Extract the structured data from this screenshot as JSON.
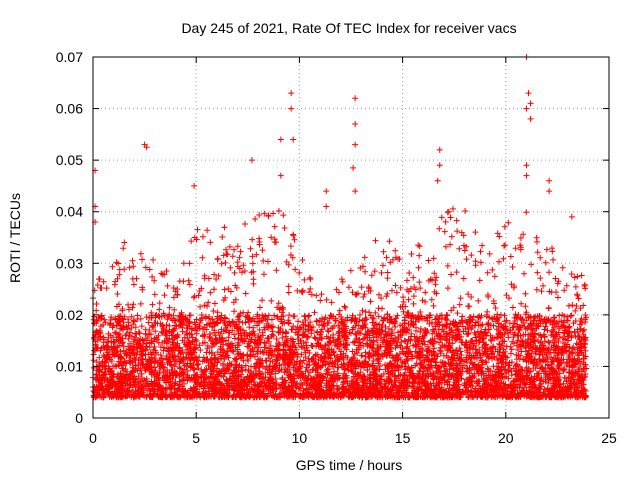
{
  "chart_data": {
    "type": "scatter",
    "title": "Day 245 of 2021, Rate Of TEC Index for receiver vacs",
    "xlabel": "GPS time / hours",
    "ylabel": "ROTI / TECUs",
    "xlim": [
      0,
      25
    ],
    "ylim": [
      0,
      0.07
    ],
    "x_ticks": [
      "0",
      "5",
      "10",
      "15",
      "20",
      "25"
    ],
    "y_ticks": [
      "0",
      "0.01",
      "0.02",
      "0.03",
      "0.04",
      "0.05",
      "0.06",
      "0.07"
    ],
    "grid": true,
    "marker": "plus",
    "color": "#ff0000",
    "series": [
      {
        "x_range": [
          0,
          23.9
        ],
        "notable_points": [
          {
            "x": 0.1,
            "y": 0.048
          },
          {
            "x": 0.1,
            "y": 0.041
          },
          {
            "x": 0.1,
            "y": 0.038
          },
          {
            "x": 2.5,
            "y": 0.053
          },
          {
            "x": 2.6,
            "y": 0.0525
          },
          {
            "x": 4.9,
            "y": 0.045
          },
          {
            "x": 7.7,
            "y": 0.05
          },
          {
            "x": 9.1,
            "y": 0.054
          },
          {
            "x": 9.1,
            "y": 0.047
          },
          {
            "x": 9.6,
            "y": 0.063
          },
          {
            "x": 9.6,
            "y": 0.06
          },
          {
            "x": 9.7,
            "y": 0.054
          },
          {
            "x": 11.3,
            "y": 0.044
          },
          {
            "x": 11.3,
            "y": 0.041
          },
          {
            "x": 12.7,
            "y": 0.062
          },
          {
            "x": 12.7,
            "y": 0.057
          },
          {
            "x": 12.7,
            "y": 0.053
          },
          {
            "x": 12.6,
            "y": 0.0485
          },
          {
            "x": 12.7,
            "y": 0.044
          },
          {
            "x": 16.8,
            "y": 0.052
          },
          {
            "x": 16.8,
            "y": 0.049
          },
          {
            "x": 16.7,
            "y": 0.046
          },
          {
            "x": 21.0,
            "y": 0.07
          },
          {
            "x": 21.1,
            "y": 0.063
          },
          {
            "x": 21.2,
            "y": 0.061
          },
          {
            "x": 21.0,
            "y": 0.06
          },
          {
            "x": 21.2,
            "y": 0.058
          },
          {
            "x": 21.0,
            "y": 0.049
          },
          {
            "x": 21.0,
            "y": 0.047
          },
          {
            "x": 22.1,
            "y": 0.046
          },
          {
            "x": 22.1,
            "y": 0.044
          },
          {
            "x": 23.2,
            "y": 0.039
          }
        ],
        "envelope_max": [
          {
            "x": 0,
            "y": 0.025
          },
          {
            "x": 1,
            "y": 0.033
          },
          {
            "x": 2,
            "y": 0.036
          },
          {
            "x": 3,
            "y": 0.031
          },
          {
            "x": 4,
            "y": 0.029
          },
          {
            "x": 5,
            "y": 0.04
          },
          {
            "x": 6,
            "y": 0.038
          },
          {
            "x": 7,
            "y": 0.036
          },
          {
            "x": 8,
            "y": 0.041
          },
          {
            "x": 9,
            "y": 0.042
          },
          {
            "x": 10,
            "y": 0.033
          },
          {
            "x": 11,
            "y": 0.024
          },
          {
            "x": 12,
            "y": 0.028
          },
          {
            "x": 13,
            "y": 0.03
          },
          {
            "x": 14,
            "y": 0.038
          },
          {
            "x": 15,
            "y": 0.03
          },
          {
            "x": 16,
            "y": 0.035
          },
          {
            "x": 17,
            "y": 0.04
          },
          {
            "x": 18,
            "y": 0.042
          },
          {
            "x": 19,
            "y": 0.033
          },
          {
            "x": 20,
            "y": 0.038
          },
          {
            "x": 21,
            "y": 0.04
          },
          {
            "x": 22,
            "y": 0.034
          },
          {
            "x": 23,
            "y": 0.03
          },
          {
            "x": 23.9,
            "y": 0.027
          }
        ],
        "typical_range": [
          0.004,
          0.02
        ]
      }
    ]
  }
}
